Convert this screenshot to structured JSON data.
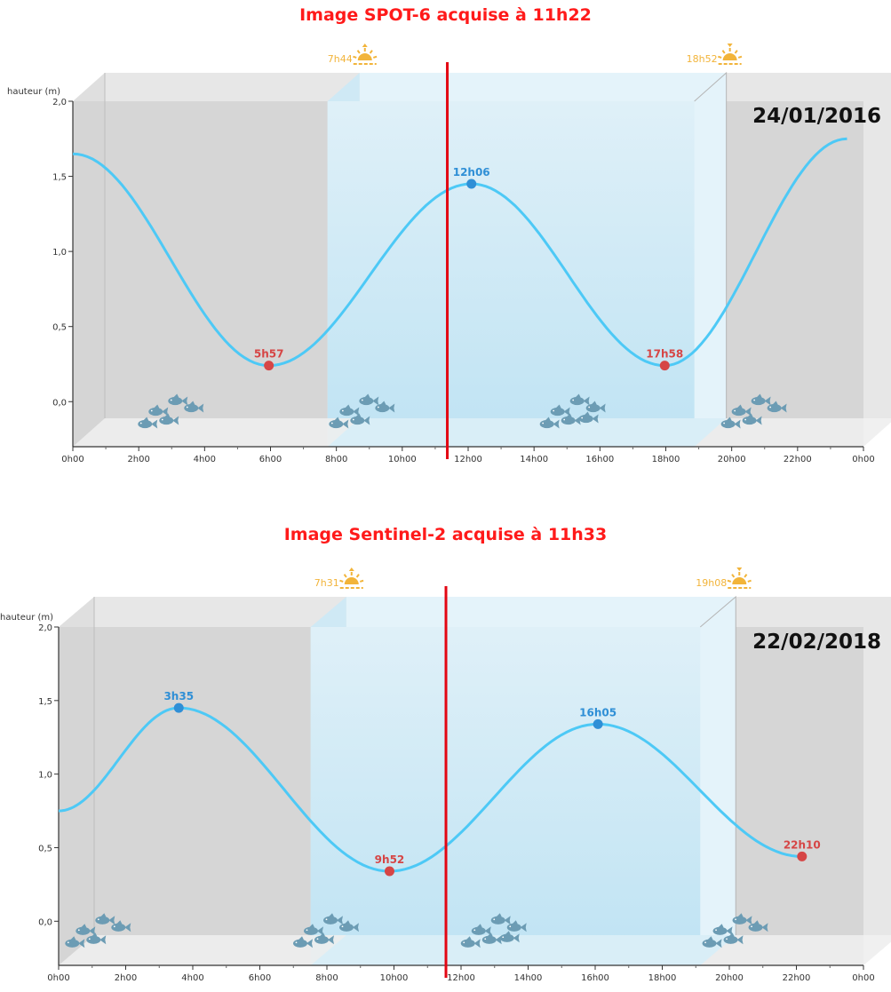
{
  "chart_data": [
    {
      "type": "line",
      "title": "Image SPOT-6 acquise à 11h22",
      "date": "24/01/2016",
      "ylabel": "hauteur (m)",
      "ylim": [
        -0.3,
        2.0
      ],
      "yticks": [
        "0,0",
        "0,5",
        "1,0",
        "1,5",
        "2,0"
      ],
      "ytick_values": [
        0,
        0.5,
        1.0,
        1.5,
        2.0
      ],
      "xlim": [
        0,
        24
      ],
      "xticks": [
        "0h00",
        "2h00",
        "4h00",
        "6h00",
        "8h00",
        "10h00",
        "12h00",
        "14h00",
        "16h00",
        "18h00",
        "20h00",
        "22h00",
        "0h00"
      ],
      "acquisition_hour": 11.367,
      "sunrise": {
        "label": "7h44",
        "hour": 7.733
      },
      "sunset": {
        "label": "18h52",
        "hour": 18.867
      },
      "x": [
        0,
        5.95,
        12.1,
        17.967,
        23.5
      ],
      "y": [
        1.65,
        0.24,
        1.45,
        0.24,
        1.75
      ],
      "extremes": [
        {
          "label": "5h57",
          "hour": 5.95,
          "height": 0.24,
          "kind": "low"
        },
        {
          "label": "12h06",
          "hour": 12.1,
          "height": 1.45,
          "kind": "high"
        },
        {
          "label": "17h58",
          "hour": 17.967,
          "height": 0.24,
          "kind": "low"
        }
      ],
      "fish_groups": [
        3.0,
        8.8,
        15.2,
        20.7
      ]
    },
    {
      "type": "line",
      "title": "Image Sentinel-2 acquise à 11h33",
      "date": "22/02/2018",
      "ylabel": "hauteur (m)",
      "ylim": [
        -0.3,
        2.0
      ],
      "yticks": [
        "0,0",
        "0,5",
        "1,0",
        "1,5",
        "2,0"
      ],
      "ytick_values": [
        0,
        0.5,
        1.0,
        1.5,
        2.0
      ],
      "xlim": [
        0,
        24
      ],
      "xticks": [
        "0h00",
        "2h00",
        "4h00",
        "6h00",
        "8h00",
        "10h00",
        "12h00",
        "14h00",
        "16h00",
        "18h00",
        "20h00",
        "22h00",
        "0h00"
      ],
      "acquisition_hour": 11.55,
      "sunrise": {
        "label": "7h31",
        "hour": 7.517
      },
      "sunset": {
        "label": "19h08",
        "hour": 19.133
      },
      "x": [
        0,
        3.583,
        9.867,
        16.083,
        22.167
      ],
      "y": [
        0.75,
        1.45,
        0.34,
        1.34,
        0.44
      ],
      "extremes": [
        {
          "label": "3h35",
          "hour": 3.583,
          "height": 1.45,
          "kind": "high"
        },
        {
          "label": "9h52",
          "hour": 9.867,
          "height": 0.34,
          "kind": "low"
        },
        {
          "label": "16h05",
          "hour": 16.083,
          "height": 1.34,
          "kind": "high"
        },
        {
          "label": "22h10",
          "hour": 22.167,
          "height": 0.44,
          "kind": "low"
        }
      ],
      "fish_groups": [
        1.2,
        8.0,
        13.0,
        20.2
      ]
    }
  ],
  "colors": {
    "title": "#ff1a1a",
    "curve": "#4dc9f6",
    "high": "#2f8fd6",
    "low": "#d64545",
    "sun": "#f2b43a",
    "day": "#bfe3f3",
    "night": "#d4d4d4",
    "acquisition_line": "#e30613"
  }
}
